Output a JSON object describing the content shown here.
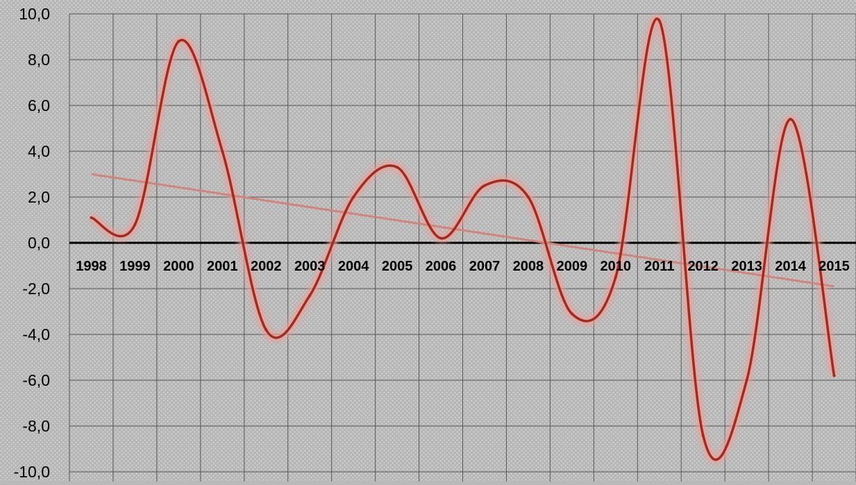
{
  "chart_data": {
    "type": "line",
    "title": "",
    "xlabel": "",
    "ylabel": "",
    "categories": [
      "1998",
      "1999",
      "2000",
      "2001",
      "2002",
      "2003",
      "2004",
      "2005",
      "2006",
      "2007",
      "2008",
      "2009",
      "2010",
      "2011",
      "2012",
      "2013",
      "2014",
      "2015"
    ],
    "series": [
      {
        "values": [
          1.1,
          0.8,
          8.8,
          4.0,
          -3.8,
          -2.3,
          2.0,
          3.3,
          0.2,
          2.5,
          2.0,
          -3.1,
          -1.5,
          9.7,
          -8.4,
          -6.0,
          5.4,
          -5.8
        ],
        "color": "#a32a1d",
        "smooth": true,
        "glow": "#e8a09a"
      },
      {
        "role": "trend",
        "from": 3.0,
        "to": -1.9,
        "color": "#d2847a"
      }
    ],
    "ylim": [
      -10,
      10
    ],
    "yticks": [
      "10,0",
      "8,0",
      "6,0",
      "4,0",
      "2,0",
      "0,0",
      "-2,0",
      "-4,0",
      "-6,0",
      "-8,0",
      "-10,0"
    ],
    "grid": true,
    "zero_line": true,
    "background": "#b9b9b9"
  }
}
